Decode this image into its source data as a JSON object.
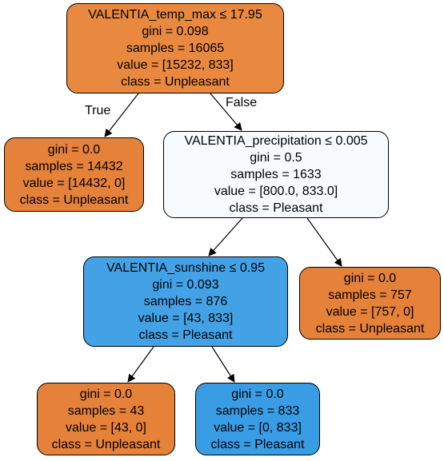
{
  "nodes": {
    "root": {
      "split": "VALENTIA_temp_max ≤ 17.95",
      "gini": "gini = 0.098",
      "samples": "samples = 16065",
      "value": "value = [15232, 833]",
      "class": "class = Unpleasant",
      "fill": "#e9893f"
    },
    "left1": {
      "gini": "gini = 0.0",
      "samples": "samples = 14432",
      "value": "value = [14432, 0]",
      "class": "class = Unpleasant",
      "fill": "#e58139"
    },
    "right1": {
      "split": "VALENTIA_precipitation ≤ 0.005",
      "gini": "gini = 0.5",
      "samples": "samples = 1633",
      "value": "value = [800.0, 833.0]",
      "class": "class = Pleasant",
      "fill": "#f7fbfe"
    },
    "mid2": {
      "split": "VALENTIA_sunshine ≤ 0.95",
      "gini": "gini = 0.093",
      "samples": "samples = 876",
      "value": "value = [43, 833]",
      "class": "class = Pleasant",
      "fill": "#43a2e6"
    },
    "right2": {
      "gini": "gini = 0.0",
      "samples": "samples = 757",
      "value": "value = [757, 0]",
      "class": "class = Unpleasant",
      "fill": "#e58139"
    },
    "left3": {
      "gini": "gini = 0.0",
      "samples": "samples = 43",
      "value": "value = [43, 0]",
      "class": "class = Unpleasant",
      "fill": "#e58139"
    },
    "right3": {
      "gini": "gini = 0.0",
      "samples": "samples = 833",
      "value": "value = [0, 833]",
      "class": "class = Pleasant",
      "fill": "#399de5"
    }
  },
  "edge_labels": {
    "true": "True",
    "false": "False"
  }
}
